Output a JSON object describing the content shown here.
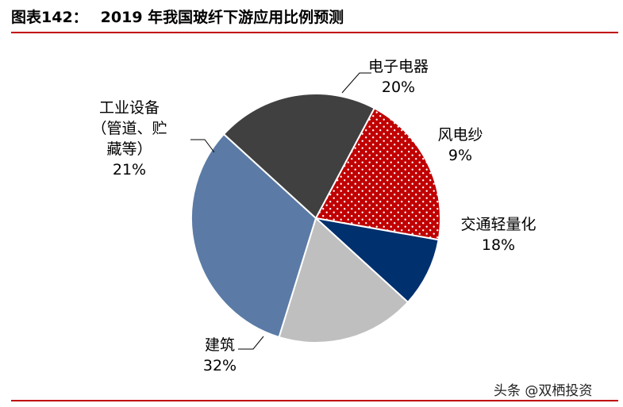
{
  "header": {
    "figure_number": "图表142：",
    "title": "2019 年我国玻纤下游应用比例预测"
  },
  "source_watermark": "头条 @双栖投资",
  "chart_data": {
    "type": "pie",
    "title": "2019 年我国玻纤下游应用比例预测",
    "slices": [
      {
        "name": "电子电器",
        "value": 20,
        "label": "20%",
        "color": "#c00000",
        "pattern": "dots"
      },
      {
        "name": "风电纱",
        "value": 9,
        "label": "9%",
        "color": "#00306e",
        "pattern": "solid"
      },
      {
        "name": "交通轻量化",
        "value": 18,
        "label": "18%",
        "color": "#bfbfbf",
        "pattern": "solid"
      },
      {
        "name": "建筑",
        "value": 32,
        "label": "32%",
        "color": "#5b7ba6",
        "pattern": "solid"
      },
      {
        "name": "工业设备（管道、贮藏等）",
        "value": 21,
        "label": "21%",
        "color": "#404040",
        "pattern": "solid"
      }
    ]
  },
  "labels": {
    "elec": {
      "name": "电子电器",
      "pct": "20%"
    },
    "wind": {
      "name": "风电纱",
      "pct": "9%"
    },
    "traffic": {
      "name": "交通轻量化",
      "pct": "18%"
    },
    "build": {
      "name": "建筑",
      "pct": "32%"
    },
    "industry": {
      "line1": "工业设备",
      "line2": "（管道、贮",
      "line3": "藏等）",
      "pct": "21%"
    }
  }
}
